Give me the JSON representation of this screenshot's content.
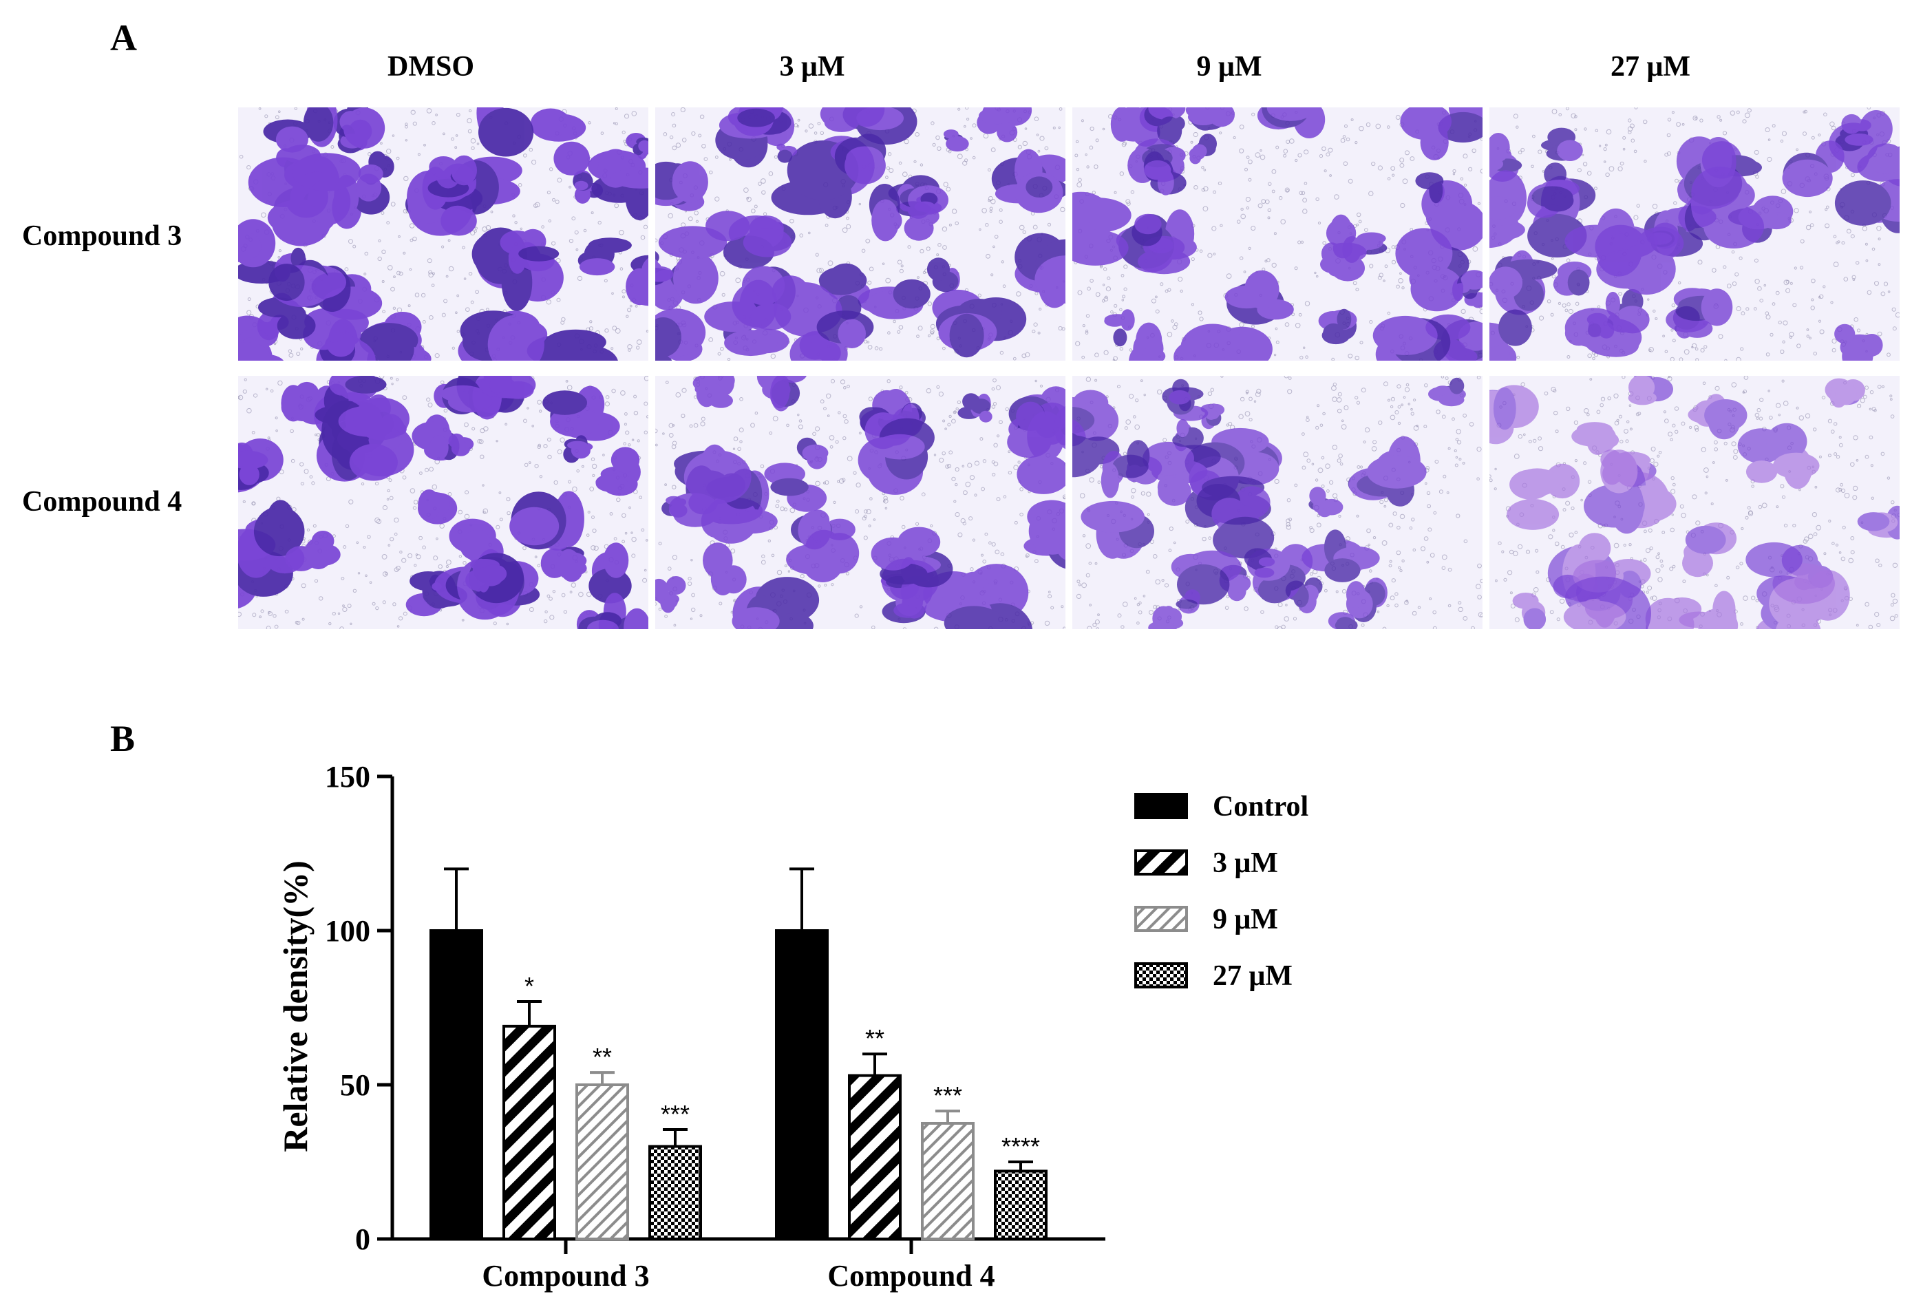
{
  "panel_a": {
    "letter": "A",
    "columns": [
      "DMSO",
      "3 μM",
      "9 μM",
      "27 μM"
    ],
    "rows": [
      "Compound 3",
      "Compound 4"
    ],
    "stain_colors": {
      "background": "#f3f1fb",
      "cell_dark": "#4b2aa8",
      "cell_mid": "#7a45d6",
      "cell_light": "#a775e0"
    },
    "stain_intensity": [
      [
        0.95,
        0.8,
        0.75,
        0.65
      ],
      [
        0.95,
        0.75,
        0.6,
        0.35
      ]
    ]
  },
  "panel_b": {
    "letter": "B"
  },
  "chart_data": {
    "type": "bar",
    "categories": [
      "Compound 3",
      "Compound 4"
    ],
    "ylabel": "Relative density(%)",
    "xlabel": "",
    "ylim": [
      0,
      150
    ],
    "yticks": [
      "0",
      "50",
      "100",
      "150"
    ],
    "series": [
      {
        "name": "Control",
        "pattern": "solid",
        "color": "#000000",
        "values": [
          100,
          100
        ],
        "errors": [
          20,
          20
        ],
        "annotations": [
          "",
          ""
        ]
      },
      {
        "name": "3 μM",
        "pattern": "diagonal-black",
        "color": "#000000",
        "values": [
          69,
          53
        ],
        "errors": [
          8,
          7
        ],
        "annotations": [
          "*",
          "**"
        ]
      },
      {
        "name": "9 μM",
        "pattern": "diagonal-gray",
        "color": "#8c8c8c",
        "values": [
          50,
          37.5
        ],
        "errors": [
          4,
          4
        ],
        "annotations": [
          "**",
          "***"
        ]
      },
      {
        "name": "27 μM",
        "pattern": "checker",
        "color": "#000000",
        "values": [
          30,
          22
        ],
        "errors": [
          5.5,
          3
        ],
        "annotations": [
          "***",
          "****"
        ]
      }
    ],
    "legend_position": "right"
  }
}
